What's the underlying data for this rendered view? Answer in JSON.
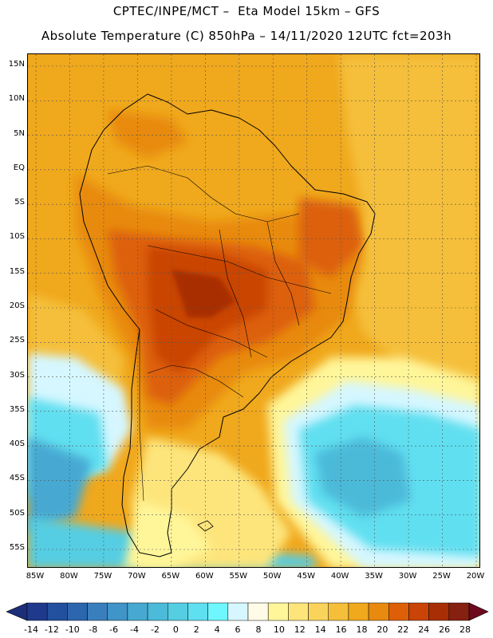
{
  "header": {
    "line1": "CPTEC/INPE/MCT –  Eta Model 15km – GFS",
    "line2": "Absolute Temperature (C) 850hPa – 14/11/2020 12UTC fct=203h"
  },
  "map": {
    "lat_labels": [
      "15N",
      "10N",
      "5N",
      "EQ",
      "5S",
      "10S",
      "15S",
      "20S",
      "25S",
      "30S",
      "35S",
      "40S",
      "45S",
      "50S",
      "55S"
    ],
    "lon_labels": [
      "85W",
      "80W",
      "75W",
      "70W",
      "65W",
      "60W",
      "55W",
      "50W",
      "45W",
      "40W",
      "35W",
      "30W",
      "25W",
      "20W"
    ],
    "lat_values": [
      15,
      10,
      5,
      0,
      -5,
      -10,
      -15,
      -20,
      -25,
      -30,
      -35,
      -40,
      -45,
      -50,
      -55
    ],
    "lon_values": [
      -85,
      -80,
      -75,
      -70,
      -65,
      -60,
      -55,
      -50,
      -45,
      -40,
      -35,
      -30,
      -25,
      -20
    ]
  },
  "colorbar": {
    "labels": [
      "-14",
      "-12",
      "-10",
      "-8",
      "-6",
      "-4",
      "-2",
      "0",
      "2",
      "4",
      "6",
      "8",
      "10",
      "12",
      "14",
      "16",
      "18",
      "20",
      "22",
      "24",
      "26",
      "28"
    ],
    "colors": [
      "#1f3a8c",
      "#23509e",
      "#2c66ad",
      "#3a7fbd",
      "#3f94c8",
      "#47a9d2",
      "#4cbad9",
      "#55cde3",
      "#60dff0",
      "#6ff7ff",
      "#d6f7ff",
      "#fffbe6",
      "#fff69a",
      "#fde57b",
      "#fad45a",
      "#f5bf3a",
      "#f0a81c",
      "#e88a10",
      "#dd6008",
      "#c94406",
      "#a82e05",
      "#862010"
    ],
    "left_arrow_color": "#1c2e7a",
    "right_arrow_color": "#6d0a1f"
  }
}
